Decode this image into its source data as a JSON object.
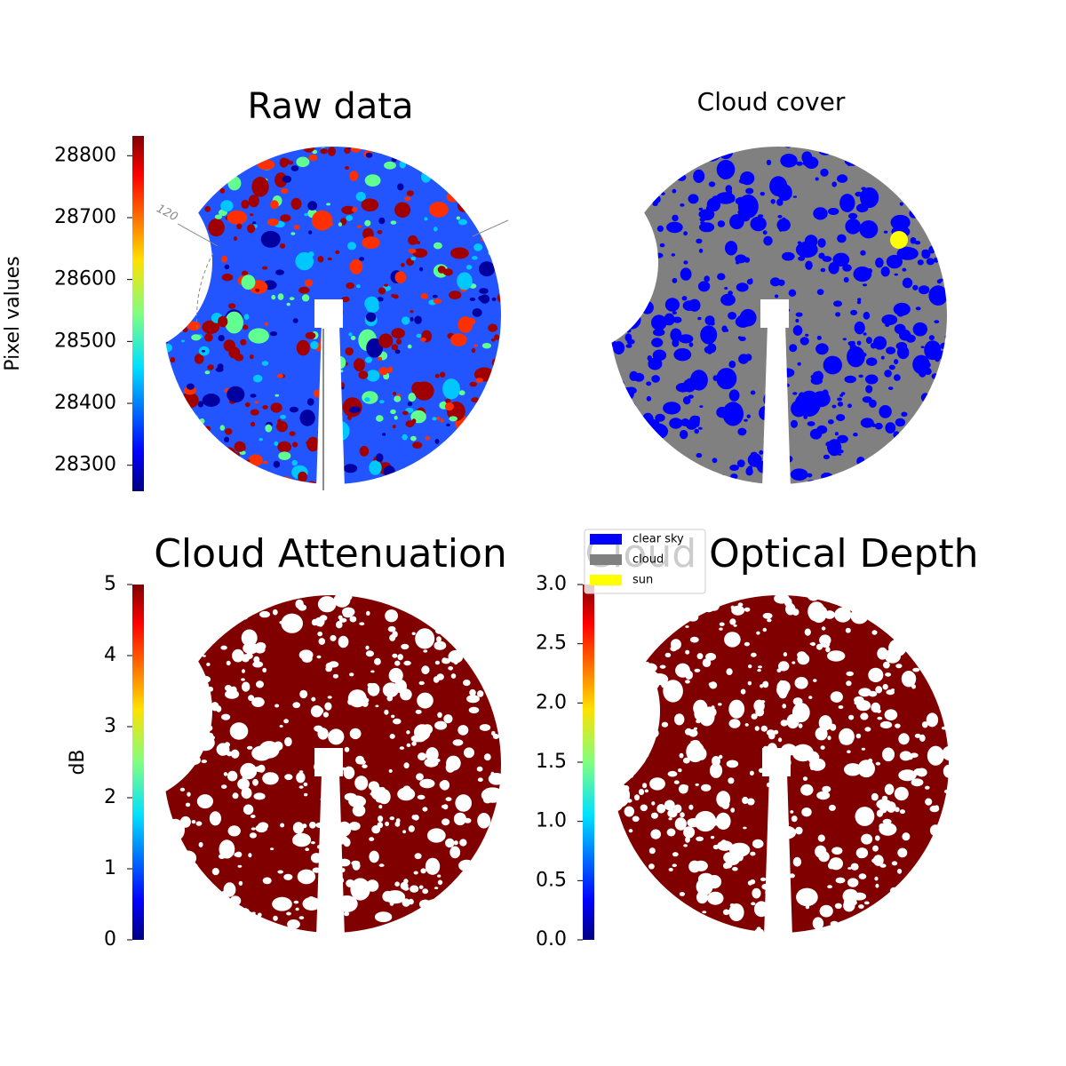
{
  "chart_data": [
    {
      "type": "image",
      "title": "Raw data",
      "ylabel": "Pixel values",
      "colormap": "jet",
      "ylim": [
        28258,
        28832
      ],
      "yticks": [
        28300,
        28400,
        28500,
        28600,
        28700,
        28800
      ],
      "annotations": [
        "120"
      ]
    },
    {
      "type": "image",
      "title": "Cloud cover",
      "legend": [
        {
          "name": "clear sky",
          "color": "#0000ff"
        },
        {
          "name": "cloud",
          "color": "#808080"
        },
        {
          "name": "sun",
          "color": "#ffff00"
        }
      ]
    },
    {
      "type": "image",
      "title": "Cloud Attenuation",
      "ylabel": "dB",
      "colormap": "jet",
      "ylim": [
        0,
        5
      ],
      "yticks": [
        0,
        1,
        2,
        3,
        4,
        5
      ]
    },
    {
      "type": "image",
      "title": "Cloud Optical Depth",
      "colormap": "jet",
      "ylim": [
        0,
        3
      ],
      "yticks": [
        {
          "value": 0,
          "label": "0.0"
        },
        0.5,
        {
          "value": 1,
          "label": "1.0"
        },
        1.5,
        {
          "value": 2,
          "label": "2.0"
        },
        2.5,
        {
          "value": 3,
          "label": "3.0"
        }
      ]
    }
  ]
}
